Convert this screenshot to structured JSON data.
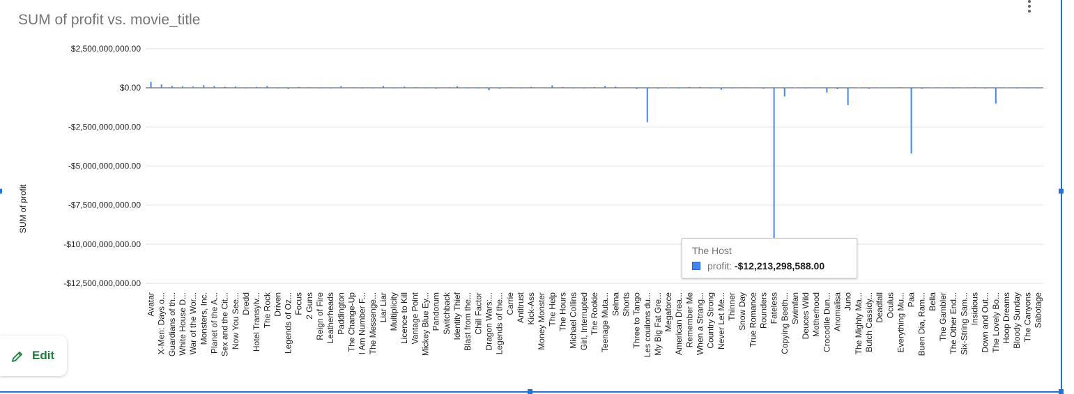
{
  "chart_data": {
    "type": "bar",
    "title": "SUM of profit vs. movie_title",
    "ylabel": "SUM of profit",
    "xlabel": "",
    "ylim": [
      -12500000000,
      2500000000
    ],
    "y_ticks": [
      {
        "value": 2500000000,
        "label": "$2,500,000,000.00"
      },
      {
        "value": 0,
        "label": "$0.00"
      },
      {
        "value": -2500000000,
        "label": "-$2,500,000,000.00"
      },
      {
        "value": -5000000000,
        "label": "-$5,000,000,000.00"
      },
      {
        "value": -7500000000,
        "label": "-$7,500,000,000.00"
      },
      {
        "value": -10000000000,
        "label": "-$10,000,000,000.00"
      },
      {
        "value": -12500000000,
        "label": "-$12,500,000,000.00"
      }
    ],
    "categories": [
      "Avatar",
      "X-Men: Days o...",
      "Guardians of th...",
      "White House D...",
      "War of the Wor...",
      "Monsters, Inc.",
      "Planet of the A...",
      "Sex and the Cit...",
      "Now You See...",
      "Dredd",
      "Hotel Transylv...",
      "The Rock",
      "Driven",
      "Legends of Oz...",
      "Focus",
      "2 Guns",
      "Reign of Fire",
      "Leatherheads",
      "Paddington",
      "The Change-Up",
      "I Am Number F...",
      "The Messenge...",
      "Liar Liar",
      "Multiplicity",
      "Licence to Kill",
      "Vantage Point",
      "Mickey Blue Ey...",
      "Pandorum",
      "Switchback",
      "Identity Thief",
      "Blast from the...",
      "Chill Factor",
      "Dragon Wars:...",
      "Legends of the...",
      "Carrie",
      "Antitrust",
      "Kick-Ass",
      "Money Monster",
      "The Help",
      "The Hours",
      "Michael Collins",
      "Girl, Interrupted",
      "The Rookie",
      "Teenage Muta...",
      "Selma",
      "Shorts",
      "Three to Tango",
      "Les couilons du...",
      "My Big Fat Gre...",
      "Megaforce",
      "American Drea...",
      "Remember Me",
      "When a Strang...",
      "Country Strong",
      "Never Let Me...",
      "Thinner",
      "Snow Day",
      "True Romance",
      "Rounders",
      "Fateless",
      "Copying Beeth...",
      "Swimfan",
      "Deuces Wild",
      "Motherhood",
      "Crocodile Dun...",
      "Anomalisa",
      "Juno",
      "The Mighty Ma...",
      "Butch Cassidy...",
      "Deadfall",
      "Oculus",
      "Everything Mu...",
      "Paa",
      "Buen Dia, Ram...",
      "Bella",
      "The Gambler",
      "The Other End...",
      "Six-String Sam...",
      "Insidious",
      "Down and Out...",
      "The Lovely Bo...",
      "Hoop Dreams",
      "Bloody Sunday",
      "The Canyons",
      "Sabotage"
    ],
    "series": [
      {
        "name": "profit",
        "color": "#4285f4",
        "values": [
          380000000,
          210000000,
          120000000,
          90000000,
          85000000,
          170000000,
          110000000,
          70000000,
          80000000,
          -25000000,
          65000000,
          120000000,
          -40000000,
          -70000000,
          60000000,
          45000000,
          -20000000,
          -35000000,
          95000000,
          40000000,
          -25000000,
          -20000000,
          110000000,
          -15000000,
          80000000,
          45000000,
          -35000000,
          -60000000,
          35000000,
          95000000,
          -20000000,
          -40000000,
          -150000000,
          -60000000,
          45000000,
          -25000000,
          65000000,
          40000000,
          160000000,
          55000000,
          -20000000,
          -40000000,
          52000000,
          110000000,
          75000000,
          38000000,
          -70000000,
          -2200000000,
          -50000000,
          30000000,
          -20000000,
          60000000,
          55000000,
          -20000000,
          -120000000,
          -30000000,
          40000000,
          35000000,
          -60000000,
          -9600000000,
          -550000000,
          30000000,
          -40000000,
          20000000,
          -300000000,
          -80000000,
          -1100000000,
          30000000,
          -60000000,
          20000000,
          15000000,
          45000000,
          -4200000000,
          -60000000,
          25000000,
          20000000,
          -35000000,
          25000000,
          45000000,
          -50000000,
          -1000000000,
          25000000,
          -20000000,
          -30000000,
          -10000000
        ]
      }
    ],
    "grid": true,
    "legend": "none"
  },
  "tooltip": {
    "title": "The Host",
    "series_label": "profit",
    "value": "-$12,213,298,588.00"
  },
  "toolbar": {
    "edit_label": "Edit"
  }
}
